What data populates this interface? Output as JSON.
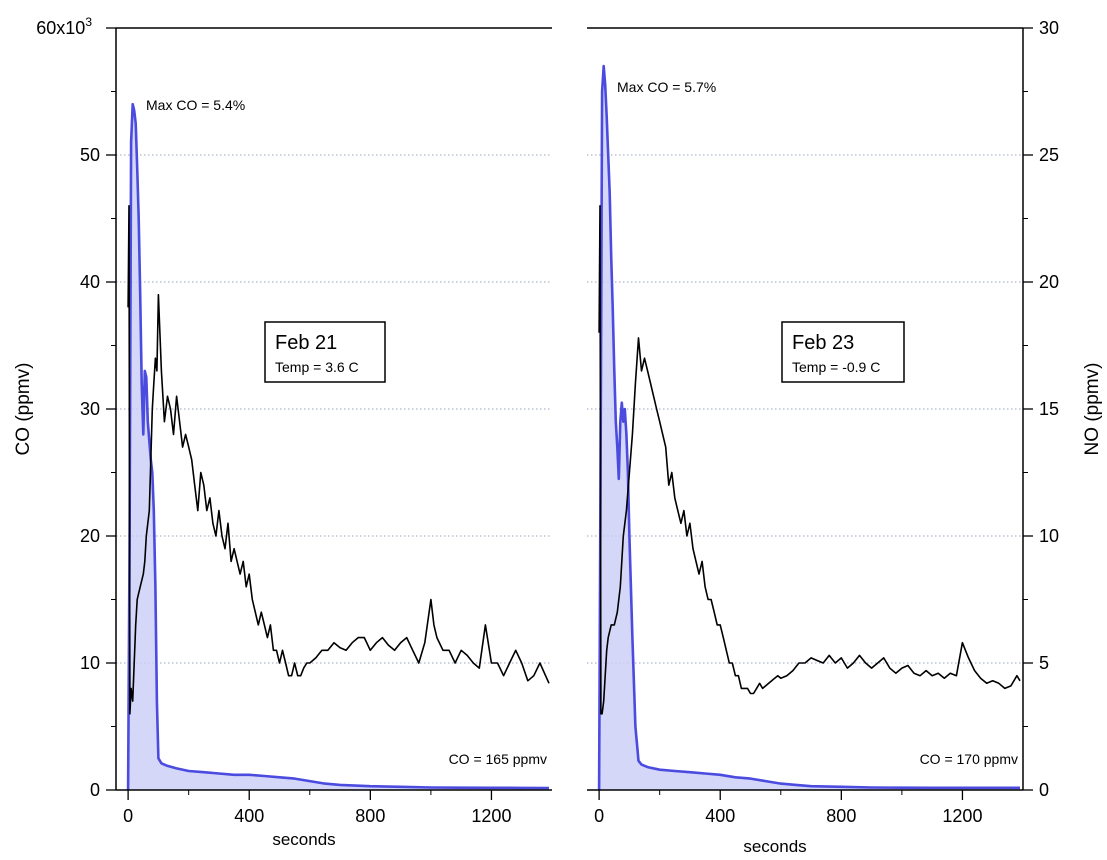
{
  "chart_data": {
    "type": "line",
    "left_axis": {
      "label": "CO (ppmv)",
      "ticks": [
        "0",
        "10",
        "20",
        "30",
        "40",
        "50",
        "60x10"
      ],
      "top_tick_superscript": "3",
      "ylim": [
        0,
        60000
      ]
    },
    "right_axis": {
      "label": "NO (ppmv)",
      "ticks": [
        "0",
        "5",
        "10",
        "15",
        "20",
        "25",
        "30"
      ],
      "ylim": [
        0,
        30
      ]
    },
    "x_axis": {
      "label": "seconds",
      "ticks": [
        "0",
        "400",
        "800",
        "1200"
      ],
      "xlim": [
        -40,
        1400
      ]
    },
    "grid": "horizontal dotted",
    "panels": [
      {
        "box_title": "Feb 21",
        "box_subtitle": "Temp = 3.6 C",
        "annotation_max": "Max CO = 5.4%",
        "annotation_final": "CO = 165 ppmv",
        "series": [
          {
            "name": "CO",
            "axis": "left",
            "color": "#4b4be0",
            "x": [
              0,
              5,
              10,
              15,
              20,
              25,
              30,
              35,
              40,
              45,
              50,
              55,
              60,
              65,
              70,
              75,
              80,
              85,
              90,
              95,
              100,
              110,
              130,
              160,
              200,
              250,
              300,
              350,
              400,
              450,
              500,
              550,
              600,
              650,
              700,
              800,
              900,
              1000,
              1100,
              1200,
              1300,
              1390
            ],
            "y": [
              0,
              20000,
              51000,
              54000,
              53500,
              52500,
              49000,
              45000,
              39000,
              32000,
              28000,
              33000,
              32500,
              29000,
              27500,
              26000,
              25000,
              22000,
              16000,
              7000,
              2500,
              2100,
              1900,
              1700,
              1500,
              1400,
              1300,
              1200,
              1200,
              1100,
              1000,
              900,
              700,
              500,
              400,
              300,
              250,
              200,
              180,
              170,
              165,
              160
            ]
          },
          {
            "name": "NO",
            "axis": "right",
            "color": "#000000",
            "x": [
              0,
              3,
              6,
              10,
              15,
              20,
              25,
              30,
              40,
              50,
              55,
              60,
              65,
              70,
              75,
              80,
              85,
              90,
              95,
              100,
              110,
              120,
              130,
              140,
              150,
              160,
              170,
              180,
              190,
              200,
              210,
              220,
              230,
              240,
              250,
              260,
              270,
              280,
              290,
              300,
              310,
              320,
              330,
              340,
              350,
              360,
              370,
              380,
              390,
              400,
              410,
              420,
              430,
              440,
              450,
              460,
              470,
              480,
              490,
              500,
              510,
              520,
              530,
              540,
              550,
              560,
              570,
              580,
              590,
              600,
              620,
              640,
              660,
              680,
              700,
              720,
              740,
              760,
              780,
              800,
              820,
              840,
              860,
              880,
              900,
              920,
              940,
              960,
              980,
              1000,
              1010,
              1020,
              1040,
              1060,
              1080,
              1100,
              1120,
              1140,
              1160,
              1180,
              1200,
              1220,
              1240,
              1260,
              1280,
              1300,
              1320,
              1340,
              1360,
              1390
            ],
            "y": [
              19,
              23,
              3,
              4,
              3.5,
              5,
              6.5,
              7.5,
              8,
              8.5,
              9,
              10,
              10.5,
              11,
              13,
              15,
              16,
              17,
              16.5,
              19.5,
              16.5,
              14.5,
              15.5,
              15,
              14,
              15.5,
              14.5,
              13.5,
              14,
              13.5,
              13,
              12,
              11,
              12.5,
              12,
              11,
              11.5,
              10.5,
              10,
              11,
              10,
              9.5,
              10.5,
              9,
              9.5,
              9,
              8.5,
              9,
              8,
              8.5,
              7.5,
              7,
              6.5,
              7,
              6.5,
              6,
              6.5,
              5.5,
              5.5,
              5,
              5.5,
              5,
              4.5,
              4.5,
              5,
              4.5,
              4.5,
              4.8,
              5,
              5,
              5.2,
              5.5,
              5.5,
              5.8,
              5.6,
              5.5,
              5.8,
              6,
              6,
              5.5,
              5.8,
              6,
              5.7,
              5.5,
              5.8,
              6,
              5.5,
              5,
              5.8,
              7.5,
              6.5,
              6,
              5.5,
              5.5,
              5,
              5.5,
              5.3,
              5,
              4.8,
              6.5,
              5,
              5,
              4.5,
              5,
              5.5,
              5,
              4.3,
              4.5,
              5,
              4.2
            ]
          }
        ]
      },
      {
        "box_title": "Feb 23",
        "box_subtitle": "Temp = -0.9 C",
        "annotation_max": "Max CO = 5.7%",
        "annotation_final": "CO = 170 ppmv",
        "series": [
          {
            "name": "CO",
            "axis": "left",
            "color": "#4b4be0",
            "x": [
              0,
              5,
              10,
              15,
              20,
              25,
              30,
              35,
              40,
              45,
              50,
              55,
              60,
              65,
              70,
              75,
              80,
              85,
              90,
              95,
              100,
              110,
              120,
              130,
              140,
              160,
              200,
              250,
              300,
              350,
              400,
              450,
              500,
              550,
              600,
              650,
              700,
              800,
              900,
              1000,
              1100,
              1200,
              1300,
              1390
            ],
            "y": [
              0,
              26000,
              55000,
              57000,
              55500,
              53000,
              50000,
              47000,
              42000,
              38000,
              33000,
              29000,
              27000,
              24500,
              29000,
              30500,
              29000,
              30000,
              28000,
              25000,
              20000,
              12000,
              5000,
              2300,
              2000,
              1800,
              1600,
              1500,
              1400,
              1300,
              1200,
              1000,
              900,
              700,
              500,
              400,
              300,
              250,
              200,
              180,
              170,
              170,
              170,
              170
            ]
          },
          {
            "name": "NO",
            "axis": "right",
            "color": "#000000",
            "x": [
              0,
              3,
              6,
              10,
              15,
              20,
              25,
              30,
              40,
              50,
              60,
              70,
              80,
              90,
              100,
              110,
              120,
              130,
              140,
              150,
              160,
              170,
              180,
              190,
              200,
              210,
              220,
              230,
              240,
              250,
              260,
              270,
              280,
              290,
              300,
              310,
              320,
              330,
              340,
              350,
              360,
              370,
              380,
              390,
              400,
              410,
              420,
              430,
              440,
              450,
              460,
              470,
              480,
              490,
              500,
              510,
              520,
              530,
              540,
              550,
              560,
              570,
              580,
              590,
              600,
              620,
              640,
              660,
              680,
              700,
              720,
              740,
              760,
              780,
              800,
              820,
              840,
              860,
              880,
              900,
              920,
              940,
              960,
              980,
              1000,
              1020,
              1040,
              1060,
              1080,
              1100,
              1120,
              1140,
              1160,
              1180,
              1200,
              1220,
              1240,
              1260,
              1280,
              1300,
              1320,
              1340,
              1360,
              1380,
              1390
            ],
            "y": [
              18,
              23,
              3,
              3,
              3.5,
              4.5,
              5.5,
              6,
              6.5,
              6.5,
              7,
              8,
              10,
              11,
              12.5,
              14,
              16,
              17.8,
              16.5,
              17,
              16.5,
              16,
              15.5,
              15,
              14.5,
              14,
              13.5,
              12,
              12.5,
              11.5,
              11,
              10.5,
              11,
              10,
              10.5,
              9.5,
              9,
              8.5,
              9,
              8,
              7.5,
              7.5,
              7,
              6.5,
              6.5,
              6,
              5.5,
              5,
              5,
              4.5,
              4.5,
              4,
              4,
              4,
              3.8,
              3.8,
              4,
              4.2,
              4,
              4.1,
              4.2,
              4.3,
              4.4,
              4.5,
              4.4,
              4.5,
              4.7,
              5,
              5,
              5.2,
              5.1,
              5,
              5.3,
              5,
              5.2,
              4.8,
              5,
              5.3,
              5,
              4.8,
              5,
              5.2,
              4.8,
              4.6,
              4.8,
              4.9,
              4.6,
              4.5,
              4.7,
              4.5,
              4.6,
              4.4,
              4.6,
              4.5,
              5.8,
              5.2,
              4.7,
              4.4,
              4.2,
              4.3,
              4.2,
              4.0,
              4.1,
              4.5,
              4.3
            ]
          }
        ]
      }
    ]
  }
}
